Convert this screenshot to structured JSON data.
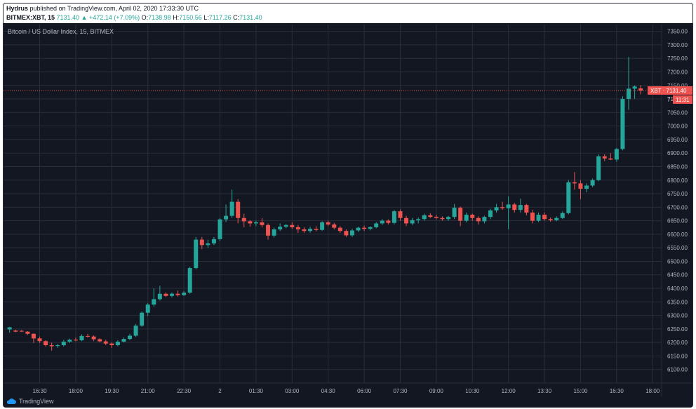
{
  "header": {
    "author": "Hydrus",
    "published": "published on TradingView.com, April 02, 2020 17:33:30 UTC",
    "symbol": "BITMEX:XBT, 15",
    "last": "7131.40",
    "change_arrow": "▲",
    "change": "+472.14 (+7.09%)",
    "o_label": "O:",
    "o_value": "7138.98",
    "h_label": "H:",
    "h_value": "7150.56",
    "l_label": "L:",
    "l_value": "7117.26",
    "c_label": "C:",
    "c_value": "7131.40"
  },
  "footer": {
    "brand": "TradingView",
    "logo_icon": "tradingview-cloud-icon"
  },
  "colors": {
    "background": "#131722",
    "grid": "#2a2e39",
    "up": "#26a69a",
    "down": "#ef5350",
    "text": "#b2b5be",
    "price_line": "#ef5350"
  },
  "chart_data": {
    "type": "candlestick",
    "title": "Bitcoin / US Dollar Index, 15, BITMEX",
    "ylim": [
      6050,
      7375
    ],
    "y_ticks": [
      6100,
      6150,
      6200,
      6250,
      6300,
      6350,
      6400,
      6450,
      6500,
      6550,
      6600,
      6650,
      6700,
      6750,
      6800,
      6850,
      6900,
      6950,
      7000,
      7050,
      7100,
      7150,
      7200,
      7250,
      7300,
      7350
    ],
    "y_tick_labels": [
      "6100.00",
      "6150.00",
      "6200.00",
      "6250.00",
      "6300.00",
      "6350.00",
      "6400.00",
      "6450.00",
      "6500.00",
      "6550.00",
      "6600.00",
      "6650.00",
      "6700.00",
      "6750.00",
      "6800.00",
      "6850.00",
      "6900.00",
      "6950.00",
      "7000.00",
      "7050.00",
      "7100.00",
      "7150.00",
      "7200.00",
      "7250.00",
      "7300.00",
      "7350.00"
    ],
    "x_tick_labels": [
      "16:30",
      "18:00",
      "19:30",
      "21:00",
      "22:30",
      "2",
      "01:30",
      "03:00",
      "04:30",
      "06:00",
      "07:30",
      "09:00",
      "10:30",
      "12:00",
      "13:30",
      "15:00",
      "16:30",
      "18:00"
    ],
    "x_tick_bar_index": [
      5,
      11,
      17,
      23,
      29,
      35,
      41,
      47,
      53,
      59,
      65,
      71,
      77,
      83,
      89,
      95,
      101,
      107
    ],
    "last_price": 7131.4,
    "last_price_label": "XBT · 7131.40",
    "countdown_label": "11:31",
    "truncated_tick_label": "7",
    "candles": [
      {
        "o": 6248,
        "h": 6258,
        "l": 6236,
        "c": 6256
      },
      {
        "o": 6244,
        "h": 6247,
        "l": 6238,
        "c": 6240
      },
      {
        "o": 6243,
        "h": 6246,
        "l": 6238,
        "c": 6242
      },
      {
        "o": 6240,
        "h": 6242,
        "l": 6228,
        "c": 6232
      },
      {
        "o": 6232,
        "h": 6234,
        "l": 6198,
        "c": 6215
      },
      {
        "o": 6215,
        "h": 6222,
        "l": 6198,
        "c": 6205
      },
      {
        "o": 6205,
        "h": 6208,
        "l": 6185,
        "c": 6190
      },
      {
        "o": 6190,
        "h": 6200,
        "l": 6170,
        "c": 6186
      },
      {
        "o": 6187,
        "h": 6195,
        "l": 6180,
        "c": 6190
      },
      {
        "o": 6190,
        "h": 6210,
        "l": 6185,
        "c": 6203
      },
      {
        "o": 6203,
        "h": 6214,
        "l": 6198,
        "c": 6210
      },
      {
        "o": 6210,
        "h": 6218,
        "l": 6204,
        "c": 6208
      },
      {
        "o": 6208,
        "h": 6230,
        "l": 6205,
        "c": 6224
      },
      {
        "o": 6224,
        "h": 6232,
        "l": 6218,
        "c": 6222
      },
      {
        "o": 6222,
        "h": 6226,
        "l": 6205,
        "c": 6212
      },
      {
        "o": 6212,
        "h": 6216,
        "l": 6200,
        "c": 6204
      },
      {
        "o": 6204,
        "h": 6210,
        "l": 6190,
        "c": 6196
      },
      {
        "o": 6196,
        "h": 6200,
        "l": 6180,
        "c": 6190
      },
      {
        "o": 6190,
        "h": 6208,
        "l": 6186,
        "c": 6203
      },
      {
        "o": 6203,
        "h": 6218,
        "l": 6200,
        "c": 6213
      },
      {
        "o": 6213,
        "h": 6232,
        "l": 6208,
        "c": 6225
      },
      {
        "o": 6225,
        "h": 6268,
        "l": 6220,
        "c": 6262
      },
      {
        "o": 6262,
        "h": 6315,
        "l": 6258,
        "c": 6310
      },
      {
        "o": 6310,
        "h": 6345,
        "l": 6298,
        "c": 6340
      },
      {
        "o": 6340,
        "h": 6400,
        "l": 6332,
        "c": 6360
      },
      {
        "o": 6360,
        "h": 6410,
        "l": 6355,
        "c": 6380
      },
      {
        "o": 6380,
        "h": 6385,
        "l": 6368,
        "c": 6372
      },
      {
        "o": 6372,
        "h": 6385,
        "l": 6366,
        "c": 6380
      },
      {
        "o": 6380,
        "h": 6392,
        "l": 6370,
        "c": 6375
      },
      {
        "o": 6375,
        "h": 6390,
        "l": 6372,
        "c": 6384
      },
      {
        "o": 6384,
        "h": 6480,
        "l": 6380,
        "c": 6475
      },
      {
        "o": 6475,
        "h": 6590,
        "l": 6470,
        "c": 6580
      },
      {
        "o": 6580,
        "h": 6590,
        "l": 6545,
        "c": 6560
      },
      {
        "o": 6560,
        "h": 6580,
        "l": 6550,
        "c": 6566
      },
      {
        "o": 6566,
        "h": 6590,
        "l": 6560,
        "c": 6582
      },
      {
        "o": 6582,
        "h": 6660,
        "l": 6575,
        "c": 6655
      },
      {
        "o": 6655,
        "h": 6710,
        "l": 6645,
        "c": 6668
      },
      {
        "o": 6668,
        "h": 6765,
        "l": 6660,
        "c": 6720
      },
      {
        "o": 6720,
        "h": 6730,
        "l": 6640,
        "c": 6660
      },
      {
        "o": 6660,
        "h": 6676,
        "l": 6626,
        "c": 6648
      },
      {
        "o": 6648,
        "h": 6652,
        "l": 6628,
        "c": 6640
      },
      {
        "o": 6640,
        "h": 6650,
        "l": 6630,
        "c": 6644
      },
      {
        "o": 6644,
        "h": 6660,
        "l": 6625,
        "c": 6634
      },
      {
        "o": 6634,
        "h": 6640,
        "l": 6580,
        "c": 6595
      },
      {
        "o": 6595,
        "h": 6625,
        "l": 6588,
        "c": 6618
      },
      {
        "o": 6618,
        "h": 6640,
        "l": 6612,
        "c": 6628
      },
      {
        "o": 6628,
        "h": 6638,
        "l": 6622,
        "c": 6634
      },
      {
        "o": 6634,
        "h": 6644,
        "l": 6620,
        "c": 6626
      },
      {
        "o": 6626,
        "h": 6634,
        "l": 6605,
        "c": 6618
      },
      {
        "o": 6618,
        "h": 6626,
        "l": 6605,
        "c": 6612
      },
      {
        "o": 6612,
        "h": 6628,
        "l": 6606,
        "c": 6620
      },
      {
        "o": 6620,
        "h": 6630,
        "l": 6610,
        "c": 6616
      },
      {
        "o": 6616,
        "h": 6648,
        "l": 6612,
        "c": 6644
      },
      {
        "o": 6644,
        "h": 6650,
        "l": 6630,
        "c": 6636
      },
      {
        "o": 6636,
        "h": 6642,
        "l": 6618,
        "c": 6624
      },
      {
        "o": 6624,
        "h": 6630,
        "l": 6605,
        "c": 6612
      },
      {
        "o": 6612,
        "h": 6618,
        "l": 6590,
        "c": 6596
      },
      {
        "o": 6596,
        "h": 6620,
        "l": 6590,
        "c": 6614
      },
      {
        "o": 6614,
        "h": 6628,
        "l": 6608,
        "c": 6624
      },
      {
        "o": 6624,
        "h": 6632,
        "l": 6612,
        "c": 6620
      },
      {
        "o": 6620,
        "h": 6630,
        "l": 6614,
        "c": 6626
      },
      {
        "o": 6626,
        "h": 6645,
        "l": 6622,
        "c": 6640
      },
      {
        "o": 6640,
        "h": 6656,
        "l": 6634,
        "c": 6650
      },
      {
        "o": 6650,
        "h": 6655,
        "l": 6636,
        "c": 6642
      },
      {
        "o": 6642,
        "h": 6690,
        "l": 6636,
        "c": 6685
      },
      {
        "o": 6685,
        "h": 6692,
        "l": 6650,
        "c": 6660
      },
      {
        "o": 6660,
        "h": 6668,
        "l": 6630,
        "c": 6640
      },
      {
        "o": 6640,
        "h": 6660,
        "l": 6634,
        "c": 6652
      },
      {
        "o": 6652,
        "h": 6662,
        "l": 6640,
        "c": 6656
      },
      {
        "o": 6656,
        "h": 6676,
        "l": 6650,
        "c": 6670
      },
      {
        "o": 6670,
        "h": 6678,
        "l": 6660,
        "c": 6664
      },
      {
        "o": 6664,
        "h": 6672,
        "l": 6655,
        "c": 6660
      },
      {
        "o": 6660,
        "h": 6666,
        "l": 6650,
        "c": 6656
      },
      {
        "o": 6656,
        "h": 6668,
        "l": 6650,
        "c": 6664
      },
      {
        "o": 6664,
        "h": 6712,
        "l": 6656,
        "c": 6698
      },
      {
        "o": 6698,
        "h": 6702,
        "l": 6630,
        "c": 6650
      },
      {
        "o": 6650,
        "h": 6680,
        "l": 6644,
        "c": 6672
      },
      {
        "o": 6672,
        "h": 6676,
        "l": 6650,
        "c": 6660
      },
      {
        "o": 6660,
        "h": 6666,
        "l": 6636,
        "c": 6648
      },
      {
        "o": 6648,
        "h": 6668,
        "l": 6640,
        "c": 6664
      },
      {
        "o": 6664,
        "h": 6694,
        "l": 6656,
        "c": 6688
      },
      {
        "o": 6688,
        "h": 6712,
        "l": 6680,
        "c": 6700
      },
      {
        "o": 6700,
        "h": 6720,
        "l": 6690,
        "c": 6696
      },
      {
        "o": 6696,
        "h": 6740,
        "l": 6618,
        "c": 6710
      },
      {
        "o": 6710,
        "h": 6716,
        "l": 6680,
        "c": 6690
      },
      {
        "o": 6690,
        "h": 6732,
        "l": 6680,
        "c": 6708
      },
      {
        "o": 6708,
        "h": 6712,
        "l": 6670,
        "c": 6680
      },
      {
        "o": 6680,
        "h": 6690,
        "l": 6640,
        "c": 6650
      },
      {
        "o": 6650,
        "h": 6680,
        "l": 6645,
        "c": 6672
      },
      {
        "o": 6672,
        "h": 6680,
        "l": 6650,
        "c": 6656
      },
      {
        "o": 6656,
        "h": 6662,
        "l": 6646,
        "c": 6652
      },
      {
        "o": 6652,
        "h": 6666,
        "l": 6648,
        "c": 6660
      },
      {
        "o": 6660,
        "h": 6685,
        "l": 6656,
        "c": 6678
      },
      {
        "o": 6678,
        "h": 6800,
        "l": 6674,
        "c": 6792
      },
      {
        "o": 6792,
        "h": 6830,
        "l": 6765,
        "c": 6788
      },
      {
        "o": 6788,
        "h": 6800,
        "l": 6730,
        "c": 6768
      },
      {
        "o": 6768,
        "h": 6788,
        "l": 6755,
        "c": 6780
      },
      {
        "o": 6780,
        "h": 6806,
        "l": 6774,
        "c": 6800
      },
      {
        "o": 6800,
        "h": 6895,
        "l": 6796,
        "c": 6888
      },
      {
        "o": 6888,
        "h": 6896,
        "l": 6870,
        "c": 6880
      },
      {
        "o": 6880,
        "h": 6900,
        "l": 6874,
        "c": 6876
      },
      {
        "o": 6876,
        "h": 6920,
        "l": 6868,
        "c": 6915
      },
      {
        "o": 6915,
        "h": 7110,
        "l": 6910,
        "c": 7100
      },
      {
        "o": 7100,
        "h": 7255,
        "l": 7060,
        "c": 7138
      },
      {
        "o": 7138,
        "h": 7150,
        "l": 7100,
        "c": 7146
      },
      {
        "o": 7139,
        "h": 7151,
        "l": 7117,
        "c": 7131
      }
    ]
  }
}
